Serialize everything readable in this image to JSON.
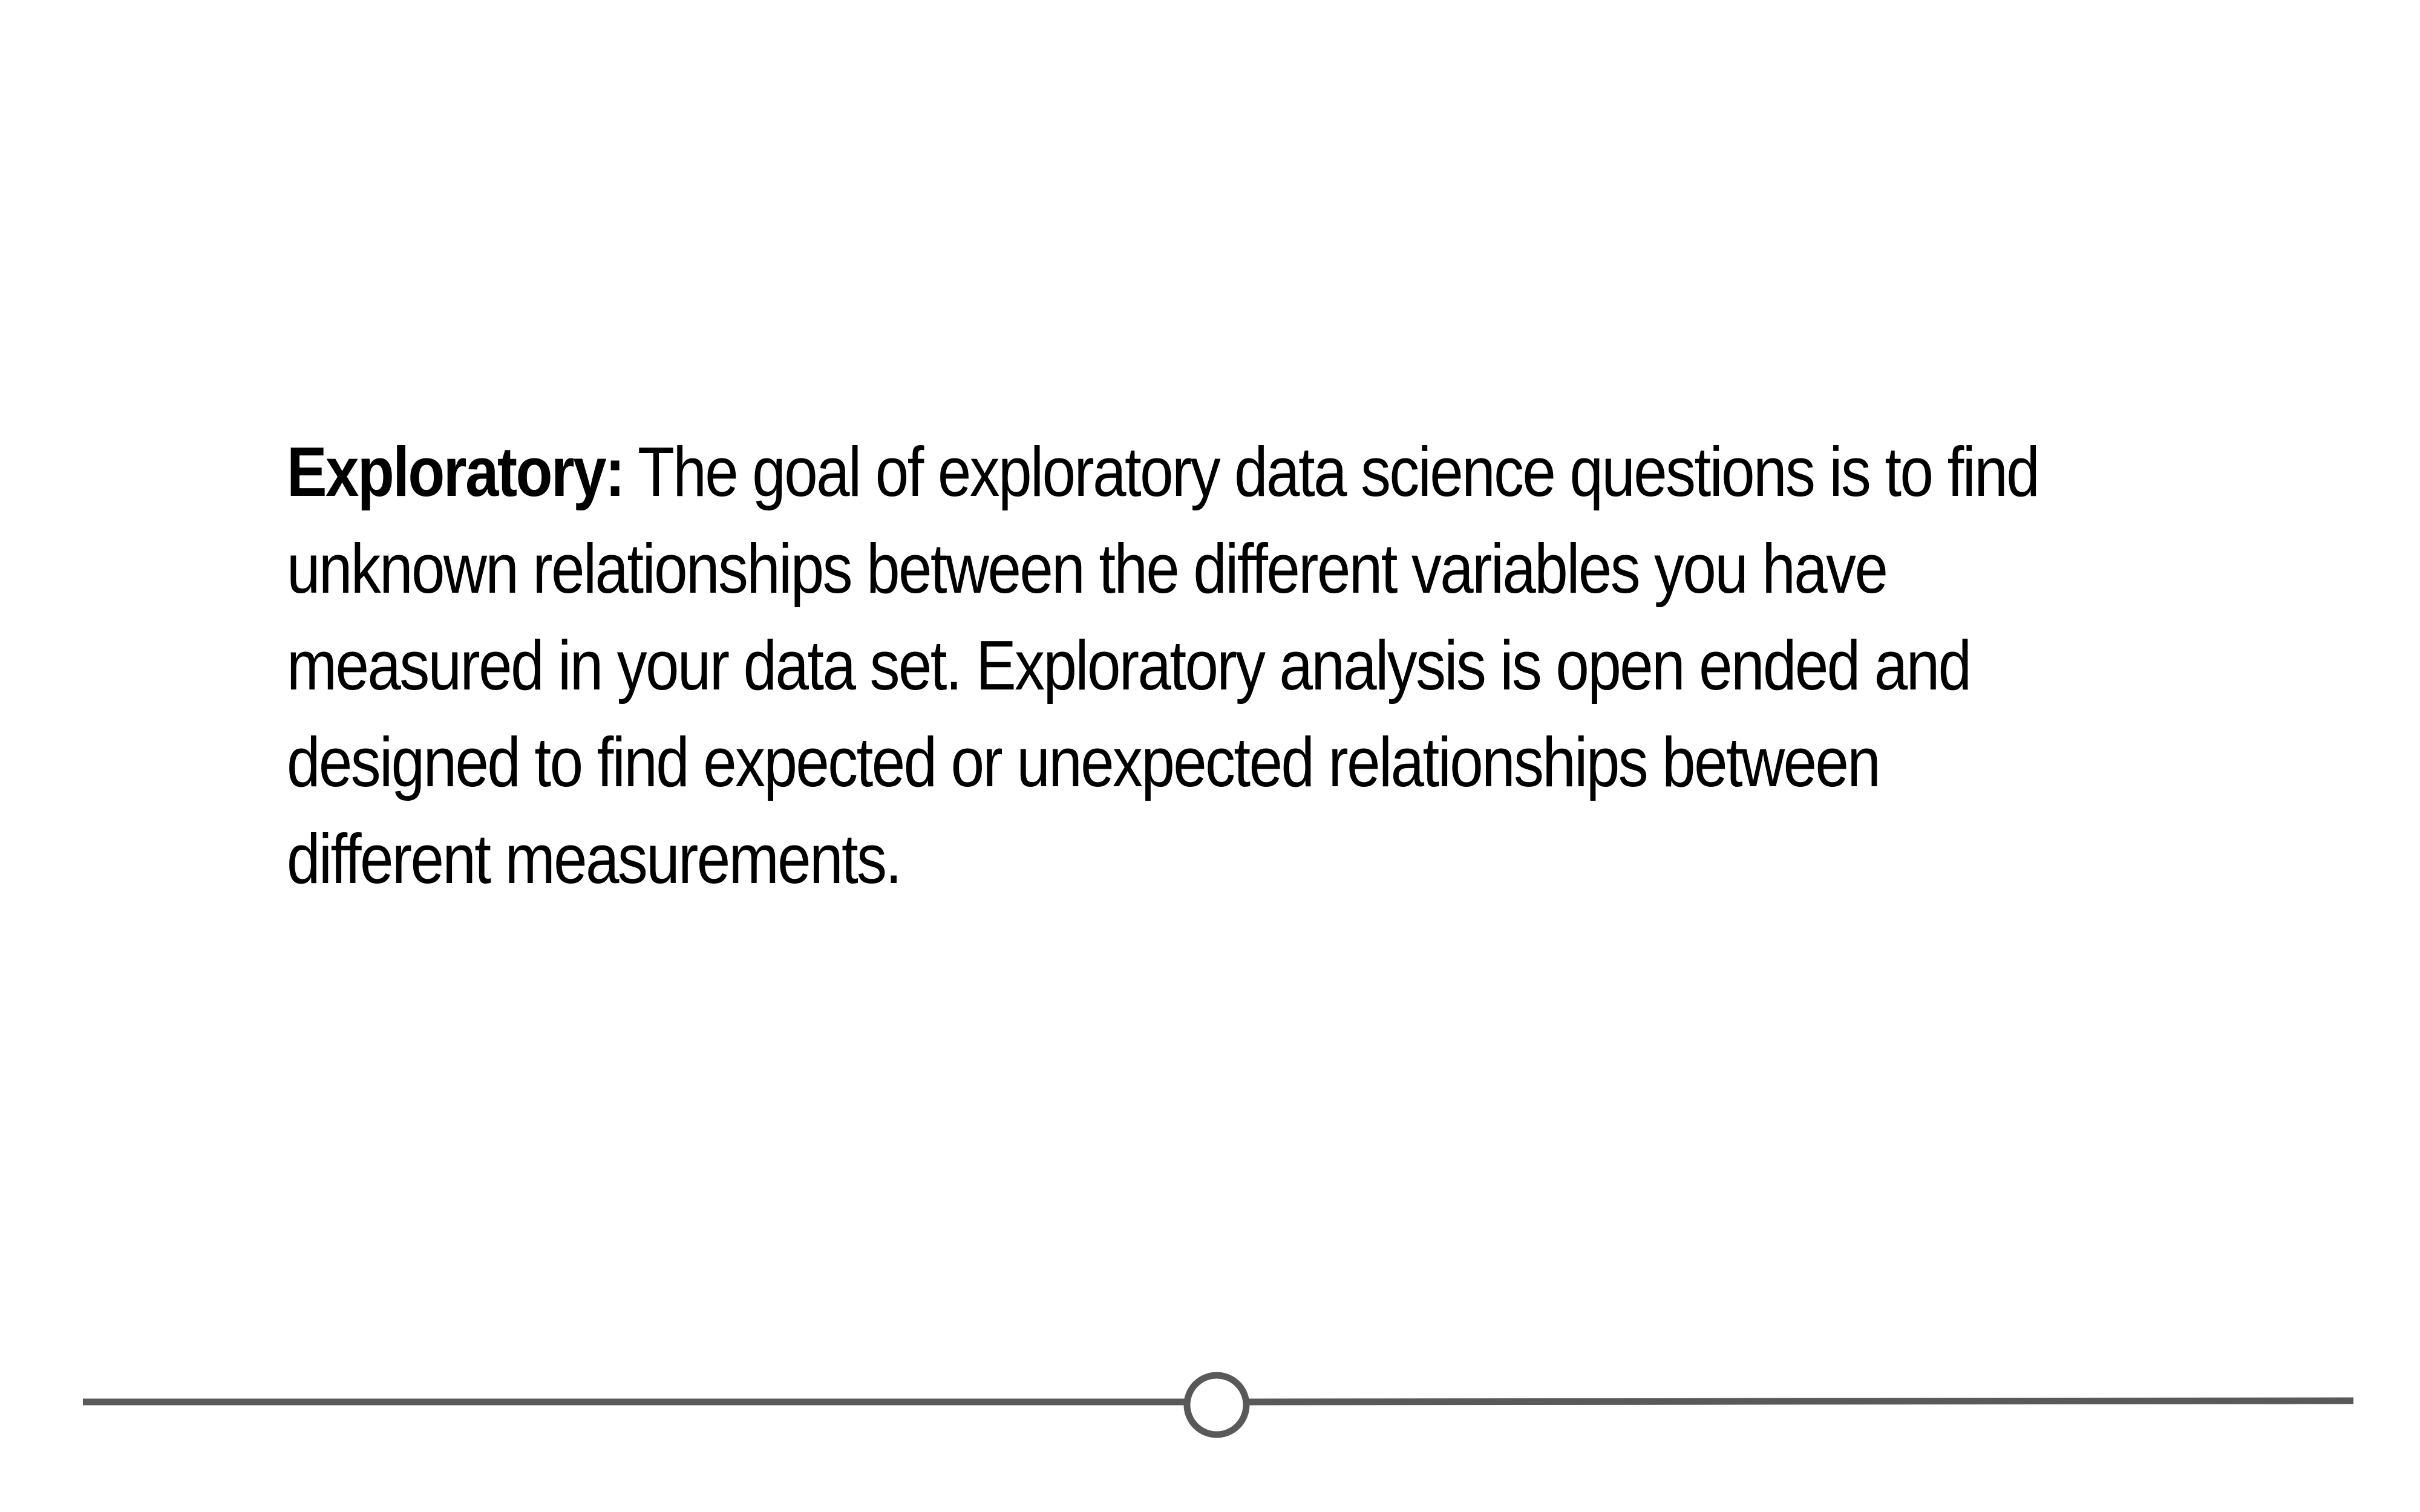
{
  "slide": {
    "paragraph": {
      "lead": "Exploratory:",
      "text": "The goal of exploratory data science questions is to find unknown relationships between the different variables you have measured in your data set. Exploratory analysis is open ended and designed to find expected or unexpected relationships between different measurements."
    }
  },
  "colors": {
    "text": "#000000",
    "divider": "#595959",
    "background": "#ffffff"
  }
}
